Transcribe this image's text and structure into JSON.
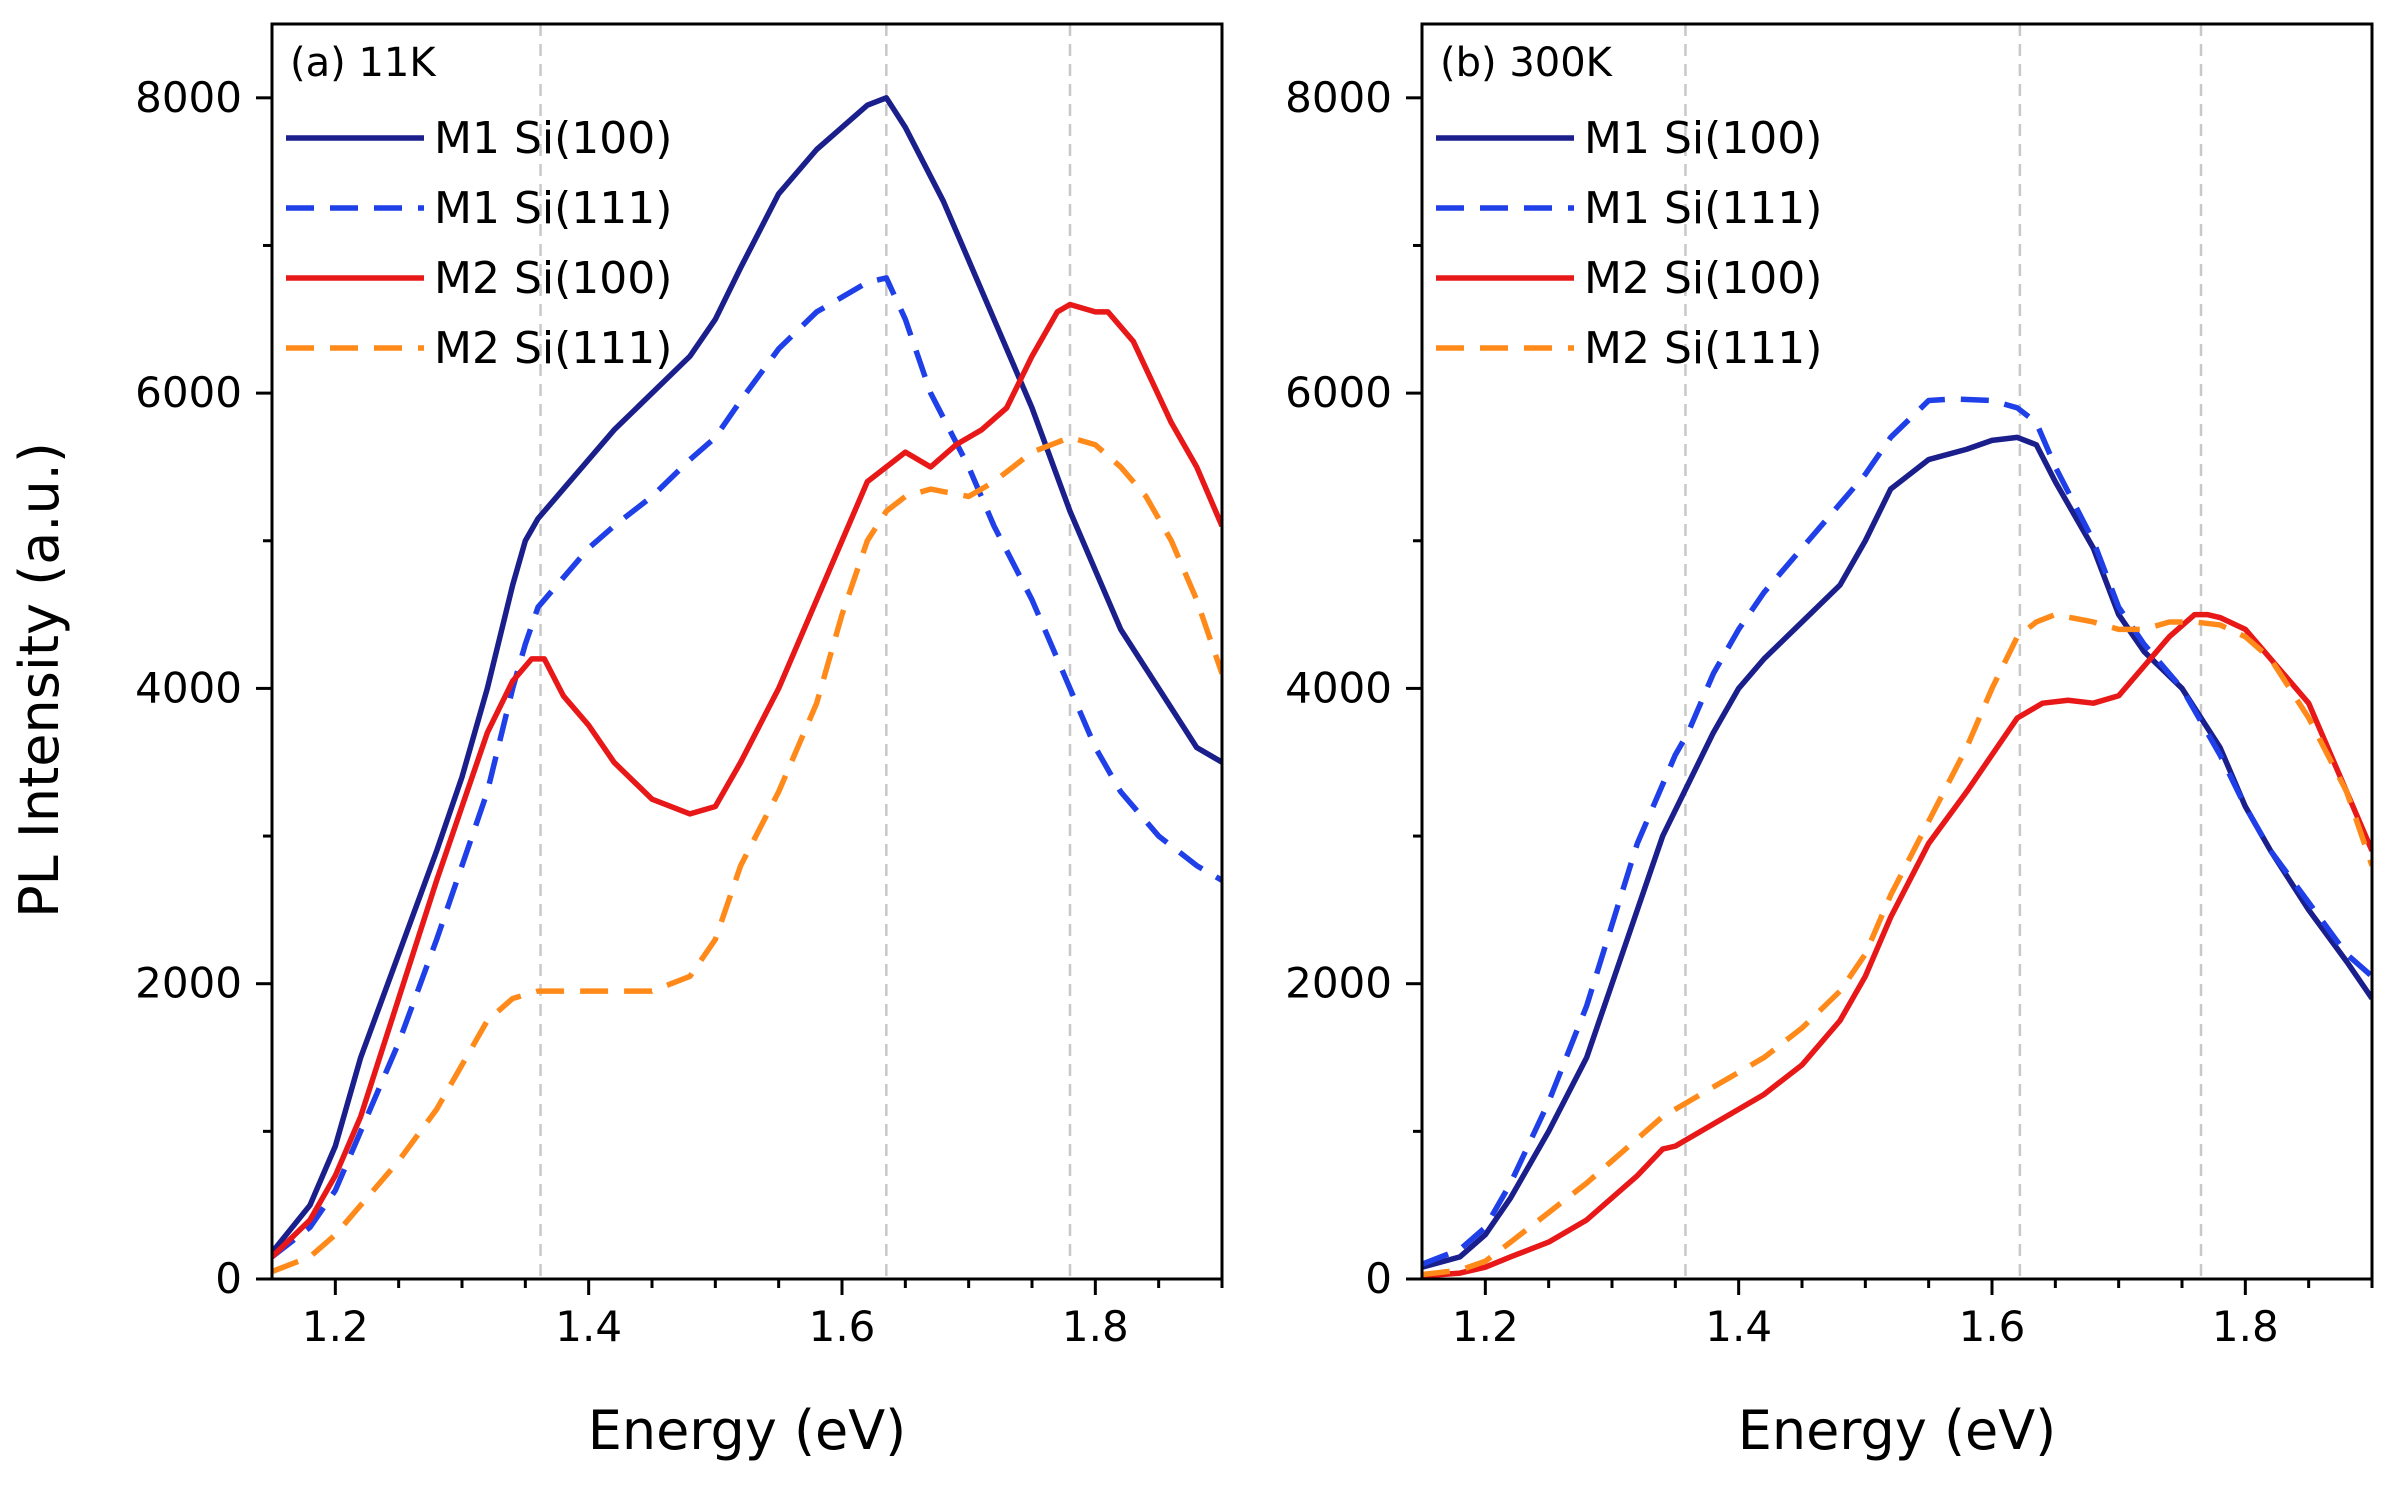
{
  "figure": {
    "ylabel": "PL Intensity (a.u.)"
  },
  "chart_data": [
    {
      "type": "line",
      "title": "(a) 11K",
      "xlabel": "Energy (eV)",
      "ylabel": "PL Intensity (a.u.)",
      "xlim": [
        1.15,
        1.9
      ],
      "ylim": [
        0,
        8500
      ],
      "xticks": [
        1.2,
        1.4,
        1.6,
        1.8
      ],
      "xtick_labels": [
        "1.2",
        "1.4",
        "1.6",
        "1.8"
      ],
      "yticks": [
        0,
        2000,
        4000,
        6000,
        8000
      ],
      "ytick_labels": [
        "0",
        "2000",
        "4000",
        "6000",
        "8000"
      ],
      "reference_lines_x": [
        1.362,
        1.635,
        1.78
      ],
      "legend": "top-left",
      "series": [
        {
          "name": "M1 Si(100)",
          "color": "#1a1f8c",
          "dash": "solid",
          "x": [
            1.15,
            1.18,
            1.2,
            1.22,
            1.25,
            1.28,
            1.3,
            1.32,
            1.34,
            1.35,
            1.36,
            1.38,
            1.4,
            1.42,
            1.45,
            1.48,
            1.5,
            1.52,
            1.55,
            1.58,
            1.6,
            1.62,
            1.635,
            1.65,
            1.68,
            1.7,
            1.72,
            1.75,
            1.78,
            1.8,
            1.82,
            1.85,
            1.88,
            1.9
          ],
          "y": [
            180,
            500,
            900,
            1500,
            2200,
            2900,
            3400,
            4000,
            4700,
            5000,
            5150,
            5350,
            5550,
            5750,
            6000,
            6250,
            6500,
            6850,
            7350,
            7650,
            7800,
            7950,
            8000,
            7800,
            7300,
            6900,
            6500,
            5900,
            5200,
            4800,
            4400,
            4000,
            3600,
            3500
          ]
        },
        {
          "name": "M1 Si(111)",
          "color": "#1f3fe8",
          "dash": "dashed",
          "x": [
            1.15,
            1.18,
            1.2,
            1.22,
            1.25,
            1.28,
            1.3,
            1.32,
            1.34,
            1.35,
            1.36,
            1.38,
            1.4,
            1.42,
            1.45,
            1.48,
            1.5,
            1.52,
            1.55,
            1.58,
            1.6,
            1.62,
            1.635,
            1.65,
            1.67,
            1.7,
            1.72,
            1.75,
            1.78,
            1.8,
            1.82,
            1.85,
            1.88,
            1.9
          ],
          "y": [
            150,
            350,
            600,
            1000,
            1600,
            2300,
            2800,
            3300,
            4000,
            4300,
            4550,
            4750,
            4950,
            5100,
            5300,
            5550,
            5700,
            5950,
            6300,
            6550,
            6650,
            6750,
            6780,
            6500,
            6000,
            5500,
            5100,
            4600,
            4000,
            3600,
            3300,
            3000,
            2800,
            2700
          ]
        },
        {
          "name": "M2 Si(100)",
          "color": "#e81818",
          "dash": "solid",
          "x": [
            1.15,
            1.18,
            1.2,
            1.22,
            1.25,
            1.28,
            1.3,
            1.32,
            1.34,
            1.355,
            1.365,
            1.38,
            1.4,
            1.42,
            1.45,
            1.48,
            1.5,
            1.52,
            1.55,
            1.58,
            1.6,
            1.62,
            1.635,
            1.65,
            1.67,
            1.69,
            1.71,
            1.73,
            1.75,
            1.77,
            1.78,
            1.8,
            1.81,
            1.83,
            1.86,
            1.88,
            1.9
          ],
          "y": [
            150,
            400,
            700,
            1100,
            1900,
            2700,
            3200,
            3700,
            4050,
            4200,
            4200,
            3950,
            3750,
            3500,
            3250,
            3150,
            3200,
            3500,
            4000,
            4600,
            5000,
            5400,
            5500,
            5600,
            5500,
            5650,
            5750,
            5900,
            6250,
            6550,
            6600,
            6550,
            6550,
            6350,
            5800,
            5500,
            5100
          ]
        },
        {
          "name": "M2 Si(111)",
          "color": "#ff8a1a",
          "dash": "dashed",
          "x": [
            1.15,
            1.18,
            1.2,
            1.22,
            1.25,
            1.28,
            1.3,
            1.32,
            1.34,
            1.36,
            1.38,
            1.4,
            1.42,
            1.45,
            1.48,
            1.5,
            1.52,
            1.55,
            1.58,
            1.6,
            1.62,
            1.635,
            1.65,
            1.67,
            1.7,
            1.72,
            1.75,
            1.78,
            1.8,
            1.82,
            1.84,
            1.86,
            1.88,
            1.9
          ],
          "y": [
            50,
            150,
            300,
            500,
            800,
            1150,
            1450,
            1750,
            1900,
            1950,
            1950,
            1950,
            1950,
            1950,
            2050,
            2300,
            2800,
            3300,
            3900,
            4500,
            5000,
            5200,
            5300,
            5350,
            5300,
            5400,
            5600,
            5700,
            5650,
            5500,
            5300,
            5000,
            4600,
            4100
          ]
        }
      ]
    },
    {
      "type": "line",
      "title": "(b) 300K",
      "xlabel": "Energy (eV)",
      "ylabel": "",
      "xlim": [
        1.15,
        1.9
      ],
      "ylim": [
        0,
        8500
      ],
      "xticks": [
        1.2,
        1.4,
        1.6,
        1.8
      ],
      "xtick_labels": [
        "1.2",
        "1.4",
        "1.6",
        "1.8"
      ],
      "yticks": [
        0,
        2000,
        4000,
        6000,
        8000
      ],
      "ytick_labels": [
        "0",
        "2000",
        "4000",
        "6000",
        "8000"
      ],
      "reference_lines_x": [
        1.358,
        1.622,
        1.765
      ],
      "legend": "top-left",
      "series": [
        {
          "name": "M1 Si(100)",
          "color": "#1a1f8c",
          "dash": "solid",
          "x": [
            1.15,
            1.18,
            1.2,
            1.22,
            1.25,
            1.28,
            1.3,
            1.32,
            1.34,
            1.36,
            1.38,
            1.4,
            1.42,
            1.45,
            1.48,
            1.5,
            1.52,
            1.55,
            1.58,
            1.6,
            1.62,
            1.635,
            1.65,
            1.68,
            1.7,
            1.72,
            1.75,
            1.78,
            1.8,
            1.82,
            1.85,
            1.88,
            1.9
          ],
          "y": [
            80,
            150,
            300,
            550,
            1000,
            1500,
            2000,
            2500,
            3000,
            3350,
            3700,
            4000,
            4200,
            4450,
            4700,
            5000,
            5350,
            5550,
            5620,
            5680,
            5700,
            5650,
            5400,
            4950,
            4500,
            4250,
            4000,
            3600,
            3200,
            2900,
            2500,
            2150,
            1900
          ]
        },
        {
          "name": "M1 Si(111)",
          "color": "#1f3fe8",
          "dash": "dashed",
          "x": [
            1.15,
            1.18,
            1.2,
            1.22,
            1.25,
            1.28,
            1.3,
            1.32,
            1.34,
            1.35,
            1.36,
            1.38,
            1.4,
            1.42,
            1.45,
            1.48,
            1.5,
            1.52,
            1.55,
            1.57,
            1.6,
            1.62,
            1.635,
            1.65,
            1.68,
            1.7,
            1.72,
            1.75,
            1.78,
            1.8,
            1.82,
            1.85,
            1.88,
            1.9
          ],
          "y": [
            100,
            200,
            350,
            650,
            1200,
            1850,
            2400,
            2950,
            3350,
            3550,
            3700,
            4100,
            4400,
            4650,
            4950,
            5250,
            5450,
            5700,
            5950,
            5960,
            5950,
            5900,
            5800,
            5500,
            5000,
            4550,
            4300,
            4000,
            3550,
            3200,
            2900,
            2550,
            2200,
            2050
          ]
        },
        {
          "name": "M2 Si(100)",
          "color": "#e81818",
          "dash": "solid",
          "x": [
            1.15,
            1.18,
            1.2,
            1.22,
            1.25,
            1.28,
            1.3,
            1.32,
            1.34,
            1.35,
            1.36,
            1.38,
            1.4,
            1.42,
            1.45,
            1.48,
            1.5,
            1.52,
            1.55,
            1.58,
            1.6,
            1.62,
            1.64,
            1.66,
            1.68,
            1.7,
            1.72,
            1.74,
            1.76,
            1.77,
            1.78,
            1.8,
            1.82,
            1.85,
            1.88,
            1.9
          ],
          "y": [
            20,
            40,
            80,
            150,
            250,
            400,
            550,
            700,
            880,
            900,
            950,
            1050,
            1150,
            1250,
            1450,
            1750,
            2050,
            2450,
            2950,
            3300,
            3550,
            3800,
            3900,
            3920,
            3900,
            3950,
            4150,
            4350,
            4500,
            4500,
            4480,
            4400,
            4200,
            3900,
            3300,
            2900
          ]
        },
        {
          "name": "M2 Si(111)",
          "color": "#ff8a1a",
          "dash": "dashed",
          "x": [
            1.15,
            1.18,
            1.2,
            1.22,
            1.25,
            1.28,
            1.3,
            1.32,
            1.34,
            1.36,
            1.38,
            1.4,
            1.42,
            1.45,
            1.48,
            1.5,
            1.52,
            1.55,
            1.58,
            1.6,
            1.62,
            1.635,
            1.65,
            1.68,
            1.7,
            1.72,
            1.74,
            1.76,
            1.78,
            1.8,
            1.82,
            1.85,
            1.88,
            1.9
          ],
          "y": [
            30,
            60,
            120,
            250,
            450,
            650,
            800,
            950,
            1100,
            1200,
            1300,
            1400,
            1500,
            1700,
            1950,
            2200,
            2600,
            3100,
            3600,
            4000,
            4350,
            4450,
            4500,
            4450,
            4400,
            4400,
            4450,
            4450,
            4430,
            4350,
            4200,
            3800,
            3300,
            2800
          ]
        }
      ]
    }
  ]
}
